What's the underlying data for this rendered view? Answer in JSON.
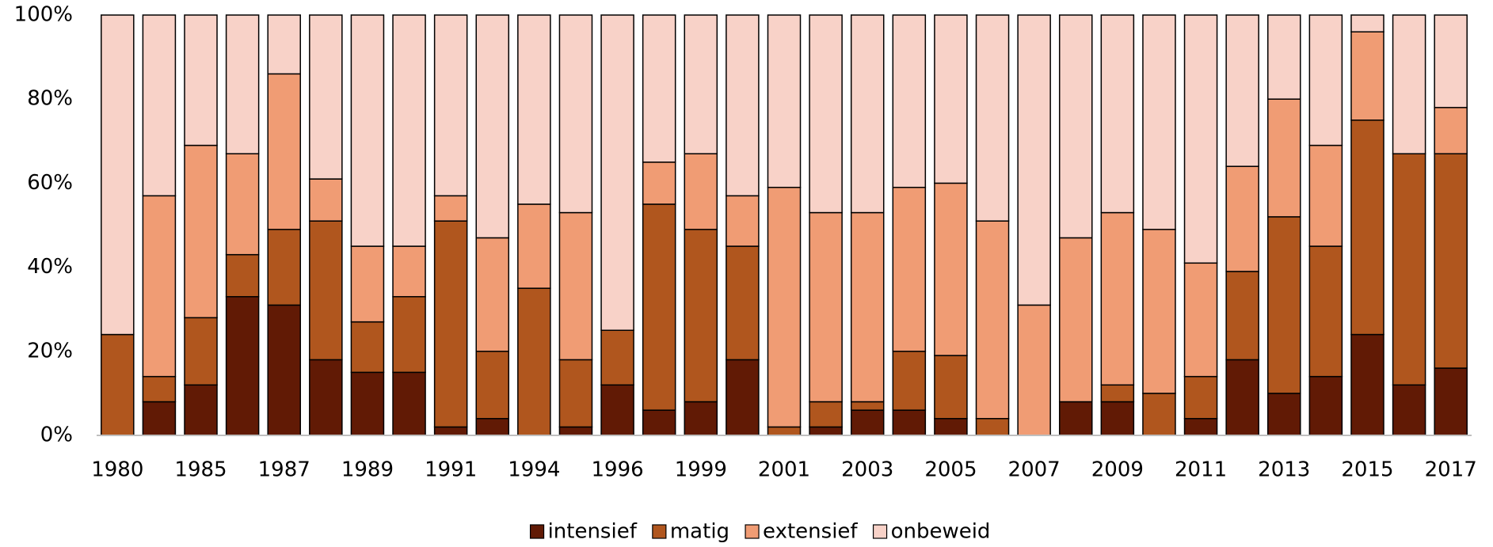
{
  "chart_data": {
    "type": "stacked-bar-percent",
    "categories": [
      "1980",
      null,
      "1985",
      null,
      "1987",
      null,
      "1989",
      null,
      "1991",
      null,
      "1994",
      null,
      "1996",
      null,
      "1999",
      null,
      "2001",
      null,
      "2003",
      null,
      "2005",
      null,
      "2007",
      null,
      "2009",
      null,
      "2011",
      null,
      "2013",
      null,
      "2015",
      null,
      "2017"
    ],
    "series": [
      {
        "name": "intensief",
        "color": "#611a05",
        "values": [
          0,
          8,
          12,
          33,
          31,
          18,
          15,
          15,
          2,
          4,
          0,
          2,
          12,
          6,
          8,
          18,
          0,
          2,
          6,
          6,
          4,
          0,
          0,
          8,
          8,
          0,
          4,
          18,
          10,
          14,
          24,
          12,
          16
        ]
      },
      {
        "name": "matig",
        "color": "#b0561e",
        "values": [
          24,
          6,
          16,
          10,
          18,
          33,
          12,
          18,
          49,
          16,
          35,
          16,
          13,
          49,
          41,
          27,
          2,
          6,
          2,
          14,
          15,
          4,
          0,
          0,
          4,
          10,
          10,
          21,
          42,
          31,
          51,
          55,
          51
        ]
      },
      {
        "name": "extensief",
        "color": "#f09c74",
        "values": [
          0,
          43,
          41,
          24,
          37,
          10,
          18,
          12,
          6,
          27,
          20,
          35,
          0,
          10,
          18,
          12,
          57,
          45,
          45,
          39,
          41,
          47,
          31,
          39,
          41,
          39,
          27,
          25,
          28,
          24,
          21,
          0,
          11
        ]
      },
      {
        "name": "onbeweid",
        "color": "#f8d2c8",
        "values": [
          76,
          43,
          31,
          33,
          14,
          39,
          55,
          55,
          43,
          53,
          45,
          47,
          75,
          35,
          33,
          43,
          41,
          47,
          47,
          41,
          40,
          49,
          69,
          53,
          47,
          51,
          59,
          36,
          20,
          31,
          4,
          33,
          22
        ]
      }
    ],
    "ylim": [
      0,
      100
    ],
    "yticks": [
      {
        "value": 0,
        "label": "0%"
      },
      {
        "value": 20,
        "label": "20%"
      },
      {
        "value": 40,
        "label": "40%"
      },
      {
        "value": 60,
        "label": "60%"
      },
      {
        "value": 80,
        "label": "80%"
      },
      {
        "value": 100,
        "label": "100%"
      }
    ],
    "legend": "bottom"
  }
}
